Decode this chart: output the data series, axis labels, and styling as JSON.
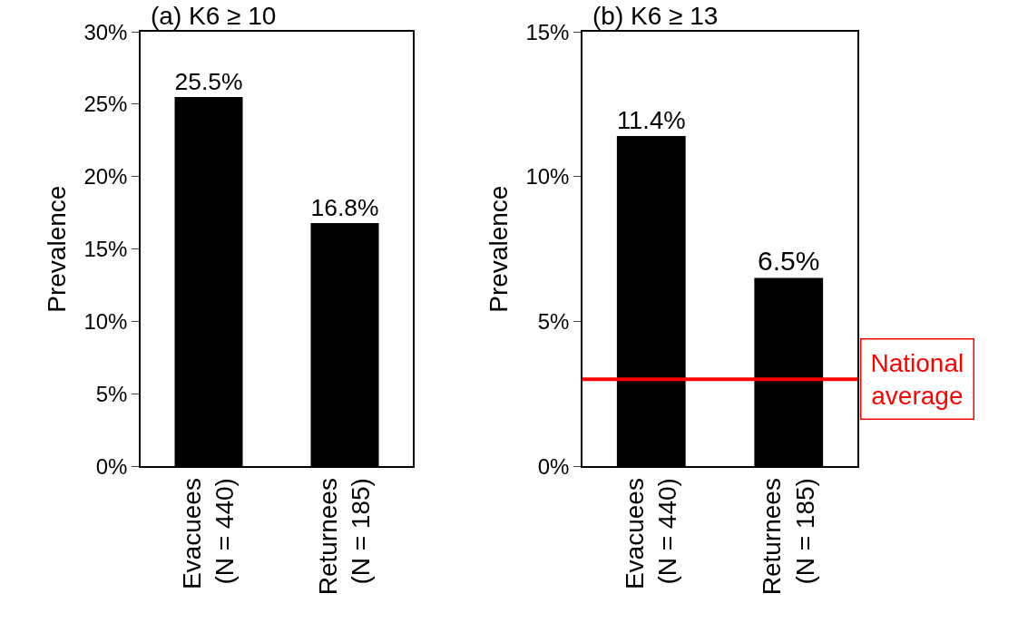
{
  "chart_data": [
    {
      "type": "bar",
      "title": "(a) K6 ≥ 10",
      "ylabel": "Prevalence",
      "categories": [
        "Evacuees\n(N = 440)",
        "Returnees\n(N = 185)"
      ],
      "values": [
        25.5,
        16.8
      ],
      "color": "#000000",
      "value_labels": [
        "25.5%",
        "16.8%"
      ],
      "ylim": [
        0,
        30
      ],
      "yticks": [
        {
          "value": 0,
          "label": "0%"
        },
        {
          "value": 5,
          "label": "5%"
        },
        {
          "value": 10,
          "label": "10%"
        },
        {
          "value": 15,
          "label": "15%"
        },
        {
          "value": 20,
          "label": "20%"
        },
        {
          "value": 25,
          "label": "25%"
        },
        {
          "value": 30,
          "label": "30%"
        }
      ]
    },
    {
      "type": "bar",
      "title": "(b) K6 ≥ 13",
      "ylabel": "Prevalence",
      "categories": [
        "Evacuees\n(N = 440)",
        "Returnees\n(N = 185)"
      ],
      "values": [
        11.4,
        6.5
      ],
      "color": "#000000",
      "value_labels": [
        "11.4%",
        "6.5%"
      ],
      "ylim": [
        0,
        15
      ],
      "yticks": [
        {
          "value": 0,
          "label": "0%"
        },
        {
          "value": 5,
          "label": "5%"
        },
        {
          "value": 10,
          "label": "10%"
        },
        {
          "value": 15,
          "label": "15%"
        }
      ],
      "ref_lines": [
        {
          "axis": "y",
          "value": 3,
          "label": "National\naverage",
          "color": "#ff0000"
        }
      ]
    }
  ]
}
